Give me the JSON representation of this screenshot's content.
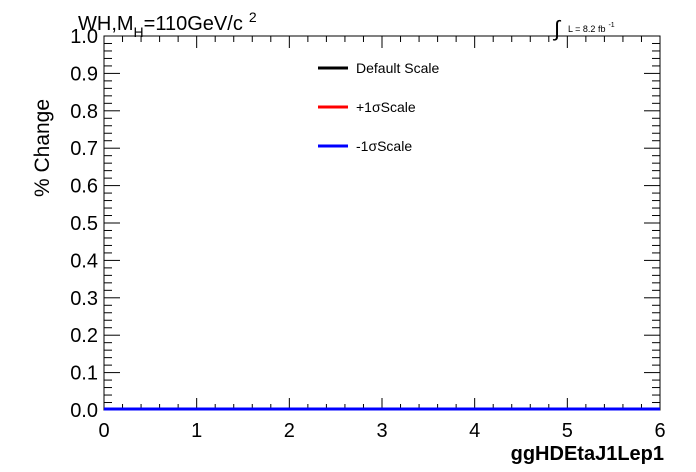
{
  "chart_data": {
    "type": "line",
    "title_main": "WH,M",
    "title_sub": "H",
    "title_rest": "=110GeV/c",
    "title_sup": "2",
    "lumi_label": "L = 8.2 fb",
    "lumi_sup": "-1",
    "xlabel": "ggHDEtaJ1Lep1",
    "ylabel": "% Change",
    "xlim": [
      0,
      6
    ],
    "ylim": [
      0,
      1.0
    ],
    "x_ticks": [
      "0",
      "1",
      "2",
      "3",
      "4",
      "5",
      "6"
    ],
    "y_ticks": [
      "0.0",
      "0.1",
      "0.2",
      "0.3",
      "0.4",
      "0.5",
      "0.6",
      "0.7",
      "0.8",
      "0.9",
      "1.0"
    ],
    "legend_position": "top-center",
    "series": [
      {
        "name": "Default Scale",
        "color": "#000000",
        "x": [
          0,
          6
        ],
        "values": [
          0,
          0
        ]
      },
      {
        "name": "+1σScale",
        "color": "#ff0000",
        "x": [
          0,
          6
        ],
        "values": [
          0,
          0
        ]
      },
      {
        "name": "-1σScale",
        "color": "#0000ff",
        "x": [
          0,
          6
        ],
        "values": [
          0,
          0
        ]
      }
    ]
  }
}
